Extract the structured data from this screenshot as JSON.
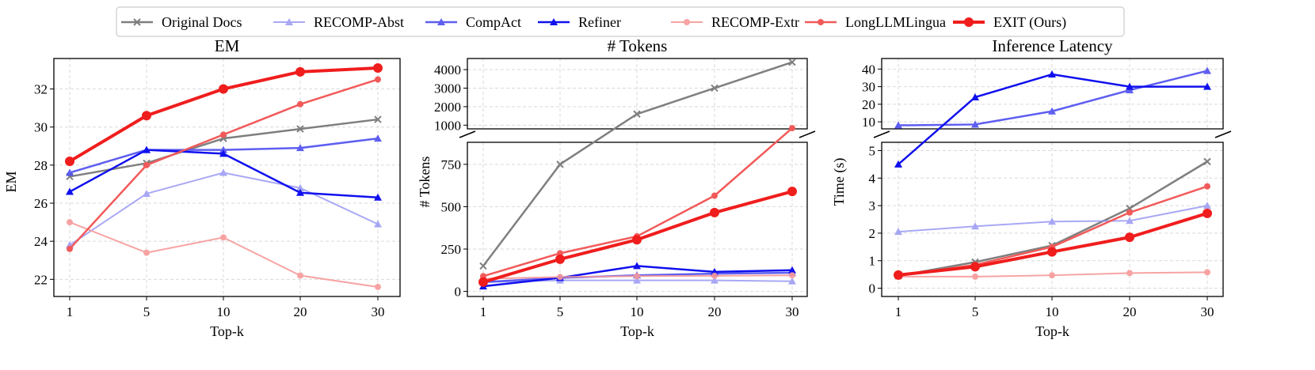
{
  "legend": [
    {
      "name": "Original Docs",
      "color": "#7f7f7f",
      "opacity": 1,
      "marker": "x",
      "width": 2.5
    },
    {
      "name": "RECOMP-Abst",
      "color": "#8c8cf2",
      "opacity": 0.75,
      "marker": "triangle",
      "width": 2
    },
    {
      "name": "CompAct",
      "color": "#4d4df0",
      "opacity": 0.9,
      "marker": "triangle",
      "width": 2.5
    },
    {
      "name": "Refiner",
      "color": "#1010ee",
      "opacity": 1,
      "marker": "triangle",
      "width": 2.5
    },
    {
      "name": "RECOMP-Extr",
      "color": "#f79a9a",
      "opacity": 0.9,
      "marker": "circle",
      "width": 2
    },
    {
      "name": "LongLLMLingua",
      "color": "#f25a5a",
      "opacity": 1,
      "marker": "circle",
      "width": 2.5
    },
    {
      "name": "EXIT (Ours)",
      "color": "#f01d1d",
      "opacity": 1,
      "marker": "bigcircle",
      "width": 4
    }
  ],
  "chart_data": [
    {
      "type": "line",
      "title": "EM",
      "xlabel": "Top-k",
      "ylabel": "EM",
      "categories": [
        "1",
        "5",
        "10",
        "20",
        "30"
      ],
      "ylim": [
        21.1,
        33.6
      ],
      "yticks": [
        22,
        24,
        26,
        28,
        30,
        32
      ],
      "series": [
        {
          "name": "Original Docs",
          "values": [
            27.4,
            28.1,
            29.4,
            29.9,
            30.4
          ]
        },
        {
          "name": "RECOMP-Abst",
          "values": [
            23.8,
            26.5,
            27.6,
            26.8,
            24.9
          ]
        },
        {
          "name": "CompAct",
          "values": [
            27.6,
            28.8,
            28.8,
            28.9,
            29.4
          ]
        },
        {
          "name": "Refiner",
          "values": [
            26.6,
            28.8,
            28.6,
            26.55,
            26.3
          ]
        },
        {
          "name": "RECOMP-Extr",
          "values": [
            25.0,
            23.4,
            24.2,
            22.2,
            21.6
          ]
        },
        {
          "name": "LongLLMLingua",
          "values": [
            23.6,
            28.0,
            29.6,
            31.2,
            32.5
          ]
        },
        {
          "name": "EXIT (Ours)",
          "values": [
            28.2,
            30.6,
            32.0,
            32.9,
            33.1
          ]
        }
      ]
    },
    {
      "type": "line",
      "title": "# Tokens",
      "xlabel": "Top-k",
      "ylabel": "# Tokens",
      "categories": [
        "1",
        "5",
        "10",
        "20",
        "30"
      ],
      "broken_axis": true,
      "upper_ylim": [
        800,
        4600
      ],
      "upper_yticks": [
        1000,
        2000,
        3000,
        4000
      ],
      "lower_ylim": [
        -30,
        880
      ],
      "lower_yticks": [
        0,
        250,
        500,
        750
      ],
      "series": [
        {
          "name": "Original Docs",
          "values": [
            150,
            750,
            1600,
            3000,
            4400
          ]
        },
        {
          "name": "RECOMP-Abst",
          "values": [
            55,
            65,
            65,
            65,
            60
          ]
        },
        {
          "name": "CompAct",
          "values": [
            55,
            80,
            95,
            105,
            110
          ]
        },
        {
          "name": "Refiner",
          "values": [
            30,
            80,
            150,
            115,
            125
          ]
        },
        {
          "name": "RECOMP-Extr",
          "values": [
            75,
            85,
            90,
            92,
            95
          ]
        },
        {
          "name": "LongLLMLingua",
          "values": [
            90,
            225,
            325,
            565,
            840
          ]
        },
        {
          "name": "EXIT (Ours)",
          "values": [
            55,
            190,
            305,
            465,
            590
          ]
        }
      ]
    },
    {
      "type": "line",
      "title": "Inference Latency",
      "xlabel": "Top-k",
      "ylabel": "Time (s)",
      "categories": [
        "1",
        "5",
        "10",
        "20",
        "30"
      ],
      "broken_axis": true,
      "upper_ylim": [
        6,
        46
      ],
      "upper_yticks": [
        10,
        20,
        30,
        40
      ],
      "lower_ylim": [
        -0.3,
        5.3
      ],
      "lower_yticks": [
        0,
        1,
        2,
        3,
        4,
        5
      ],
      "series": [
        {
          "name": "Original Docs",
          "values": [
            0.45,
            0.95,
            1.55,
            2.9,
            4.6
          ]
        },
        {
          "name": "RECOMP-Abst",
          "values": [
            2.05,
            2.25,
            2.42,
            2.45,
            3.0
          ]
        },
        {
          "name": "CompAct",
          "values": [
            8,
            8.5,
            16,
            28,
            39
          ]
        },
        {
          "name": "Refiner",
          "values": [
            4.5,
            24,
            37,
            30,
            30
          ]
        },
        {
          "name": "RECOMP-Extr",
          "values": [
            0.42,
            0.42,
            0.47,
            0.55,
            0.58
          ]
        },
        {
          "name": "LongLLMLingua",
          "values": [
            0.45,
            0.85,
            1.5,
            2.75,
            3.7
          ]
        },
        {
          "name": "EXIT (Ours)",
          "values": [
            0.48,
            0.78,
            1.32,
            1.85,
            2.72
          ]
        }
      ]
    }
  ]
}
